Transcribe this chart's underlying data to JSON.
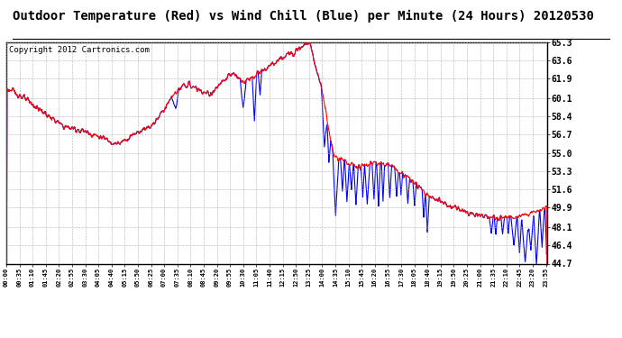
{
  "title": "Outdoor Temperature (Red) vs Wind Chill (Blue) per Minute (24 Hours) 20120530",
  "copyright": "Copyright 2012 Cartronics.com",
  "ylabel_right_ticks": [
    44.7,
    46.4,
    48.1,
    49.9,
    51.6,
    53.3,
    55.0,
    56.7,
    58.4,
    60.1,
    61.9,
    63.6,
    65.3
  ],
  "ylim": [
    44.7,
    65.3
  ],
  "bg_color": "#ffffff",
  "line_color_red": "#ff0000",
  "line_color_blue": "#0000ff",
  "title_fontsize": 10,
  "copyright_fontsize": 6.5
}
